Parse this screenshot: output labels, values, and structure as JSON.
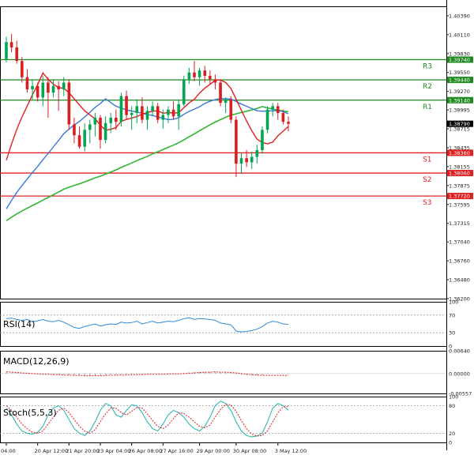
{
  "chart_data": [
    {
      "type": "candlestick",
      "price_axis_labels": [
        "1.40390",
        "1.40110",
        "1.39830",
        "1.39550",
        "1.39270",
        "1.38995",
        "1.38715",
        "1.38435",
        "1.38155",
        "1.37875",
        "1.37595",
        "1.37315",
        "1.37040",
        "1.36760",
        "1.36480",
        "1.36200"
      ],
      "price_range": [
        1.362,
        1.4053
      ],
      "current_price": 1.3879,
      "current_price_label": "1.38790",
      "colors": {
        "bull": "#00a651",
        "bear": "#d81e1e",
        "ma_fast": "#e02020",
        "ma_mid": "#3a78d8",
        "ma_slow": "#32b432",
        "resistance": "#1f8a1f",
        "support": "#e02020",
        "price_badge": "#000000"
      },
      "levels": [
        {
          "name": "R3",
          "price": 1.3974,
          "label": "1.39740",
          "kind": "resistance"
        },
        {
          "name": "R2",
          "price": 1.3944,
          "label": "1.39440",
          "kind": "resistance"
        },
        {
          "name": "R1",
          "price": 1.3914,
          "label": "1.39140",
          "kind": "resistance"
        },
        {
          "name": "S1",
          "price": 1.3836,
          "label": "1.38360",
          "kind": "support"
        },
        {
          "name": "S2",
          "price": 1.3806,
          "label": "1.38060",
          "kind": "support"
        },
        {
          "name": "S3",
          "price": 1.3772,
          "label": "1.37720",
          "kind": "support"
        }
      ],
      "candles": [
        [
          1.3975,
          1.4008,
          1.397,
          1.4
        ],
        [
          1.4,
          1.4012,
          1.3985,
          1.3992
        ],
        [
          1.3992,
          1.4002,
          1.3968,
          1.3972
        ],
        [
          1.3972,
          1.3978,
          1.394,
          1.3948
        ],
        [
          1.3948,
          1.396,
          1.3925,
          1.393
        ],
        [
          1.393,
          1.3945,
          1.3915,
          1.3935
        ],
        [
          1.3935,
          1.394,
          1.3912,
          1.3918
        ],
        [
          1.3918,
          1.395,
          1.3905,
          1.394
        ],
        [
          1.394,
          1.3948,
          1.3888,
          1.3925
        ],
        [
          1.3925,
          1.3945,
          1.3918,
          1.3935
        ],
        [
          1.3935,
          1.3942,
          1.3898,
          1.393
        ],
        [
          1.393,
          1.3948,
          1.392,
          1.394
        ],
        [
          1.394,
          1.3945,
          1.387,
          1.3878
        ],
        [
          1.3878,
          1.3888,
          1.385,
          1.3862
        ],
        [
          1.3862,
          1.3875,
          1.3842,
          1.3845
        ],
        [
          1.3845,
          1.388,
          1.3838,
          1.387
        ],
        [
          1.387,
          1.3885,
          1.385,
          1.3878
        ],
        [
          1.3878,
          1.3895,
          1.386,
          1.3888
        ],
        [
          1.3888,
          1.3892,
          1.3842,
          1.3855
        ],
        [
          1.3855,
          1.389,
          1.385,
          1.388
        ],
        [
          1.388,
          1.3895,
          1.3865,
          1.3888
        ],
        [
          1.3888,
          1.39,
          1.387,
          1.3882
        ],
        [
          1.3882,
          1.3925,
          1.3875,
          1.392
        ],
        [
          1.392,
          1.3928,
          1.3885,
          1.3892
        ],
        [
          1.3892,
          1.3905,
          1.387,
          1.3895
        ],
        [
          1.3895,
          1.3915,
          1.388,
          1.3905
        ],
        [
          1.3905,
          1.3918,
          1.388,
          1.3885
        ],
        [
          1.3885,
          1.3905,
          1.387,
          1.3898
        ],
        [
          1.3898,
          1.3912,
          1.389,
          1.3905
        ],
        [
          1.3905,
          1.391,
          1.388,
          1.3885
        ],
        [
          1.3885,
          1.39,
          1.3872,
          1.3892
        ],
        [
          1.3892,
          1.3905,
          1.388,
          1.39
        ],
        [
          1.39,
          1.3912,
          1.3885,
          1.389
        ],
        [
          1.389,
          1.3915,
          1.387,
          1.3908
        ],
        [
          1.3908,
          1.395,
          1.3905,
          1.3945
        ],
        [
          1.3945,
          1.3962,
          1.3938,
          1.3955
        ],
        [
          1.3955,
          1.3972,
          1.3942,
          1.3948
        ],
        [
          1.3948,
          1.3962,
          1.3935,
          1.3958
        ],
        [
          1.3958,
          1.3965,
          1.394,
          1.395
        ],
        [
          1.395,
          1.3958,
          1.3938,
          1.3945
        ],
        [
          1.3945,
          1.3952,
          1.393,
          1.394
        ],
        [
          1.394,
          1.3945,
          1.3905,
          1.391
        ],
        [
          1.391,
          1.3918,
          1.3895,
          1.3915
        ],
        [
          1.3915,
          1.392,
          1.388,
          1.3885
        ],
        [
          1.3885,
          1.389,
          1.38,
          1.382
        ],
        [
          1.382,
          1.3835,
          1.3805,
          1.3828
        ],
        [
          1.3828,
          1.384,
          1.3815,
          1.3822
        ],
        [
          1.3822,
          1.3838,
          1.3812,
          1.383
        ],
        [
          1.383,
          1.3848,
          1.382,
          1.384
        ],
        [
          1.384,
          1.3875,
          1.3835,
          1.387
        ],
        [
          1.387,
          1.3905,
          1.3865,
          1.39
        ],
        [
          1.39,
          1.391,
          1.389,
          1.3905
        ],
        [
          1.3905,
          1.391,
          1.3885,
          1.3895
        ],
        [
          1.3895,
          1.39,
          1.3878,
          1.3882
        ],
        [
          1.3882,
          1.389,
          1.3868,
          1.3879
        ]
      ],
      "time_labels": [
        "04:00",
        "20 Apr 12:00",
        "21 Apr 20:00",
        "23 Apr 04:00",
        "26 Apr 08:00",
        "27 Apr 16:00",
        "29 Apr 00:00",
        "30 Apr 08:00",
        "3 May 12:00"
      ]
    },
    {
      "type": "line",
      "name": "RSI(14)",
      "axis_labels": [
        "100",
        "70",
        "30",
        "0"
      ],
      "ylim": [
        0,
        100
      ],
      "levels": [
        70,
        30
      ],
      "values": [
        62,
        63,
        60,
        58,
        60,
        55,
        57,
        60,
        56,
        55,
        58,
        54,
        48,
        42,
        40,
        44,
        47,
        50,
        45,
        48,
        50,
        49,
        54,
        52,
        53,
        56,
        50,
        53,
        56,
        52,
        54,
        56,
        55,
        58,
        62,
        64,
        60,
        62,
        61,
        60,
        58,
        52,
        50,
        48,
        34,
        32,
        33,
        35,
        38,
        44,
        52,
        56,
        54,
        50,
        49
      ]
    },
    {
      "type": "histogram+line",
      "name": "MACD(12,26,9)",
      "axis_labels": [
        "0.00640",
        "0.00000",
        "-0.00557"
      ],
      "ylim": [
        -0.00557,
        0.0064
      ],
      "histogram": [
        0.0004,
        0.0003,
        0.0002,
        0.0001,
        0.0,
        -0.0001,
        -0.0002,
        -0.0002,
        -0.0003,
        -0.0003,
        -0.0003,
        -0.0003,
        -0.0004,
        -0.0005,
        -0.0006,
        -0.0006,
        -0.0006,
        -0.0005,
        -0.0005,
        -0.0005,
        -0.0004,
        -0.0004,
        -0.0003,
        -0.0003,
        -0.0003,
        -0.0002,
        -0.0002,
        -0.0002,
        -0.0001,
        -0.0001,
        -0.0001,
        -0.0001,
        -0.0001,
        0.0,
        0.0002,
        0.0003,
        0.0004,
        0.0005,
        0.0005,
        0.0005,
        0.0005,
        0.0004,
        0.0003,
        0.0002,
        -0.0001,
        -0.0003,
        -0.0004,
        -0.0005,
        -0.0005,
        -0.0004,
        -0.0002,
        -0.0001,
        -0.0001,
        -0.0001,
        -0.0002
      ],
      "signal": [
        0.0005,
        0.0004,
        0.0003,
        0.0002,
        0.0001,
        0.0,
        -0.0001,
        -0.0002,
        -0.0002,
        -0.0003,
        -0.0003,
        -0.0004,
        -0.0004,
        -0.0005,
        -0.0005,
        -0.0006,
        -0.0006,
        -0.0006,
        -0.0006,
        -0.0005,
        -0.0005,
        -0.0004,
        -0.0004,
        -0.0004,
        -0.0003,
        -0.0003,
        -0.0003,
        -0.0002,
        -0.0002,
        -0.0002,
        -0.0002,
        -0.0001,
        -0.0001,
        -0.0001,
        0.0,
        0.0001,
        0.0002,
        0.0003,
        0.0004,
        0.0004,
        0.0005,
        0.0004,
        0.0004,
        0.0003,
        0.0002,
        0.0,
        -0.0002,
        -0.0003,
        -0.0004,
        -0.0005,
        -0.0005,
        -0.0005,
        -0.0005,
        -0.0005,
        -0.0005
      ]
    },
    {
      "type": "line",
      "name": "Stoch(5,5,3)",
      "axis_labels": [
        "100",
        "80",
        "20",
        "0"
      ],
      "ylim": [
        0,
        100
      ],
      "levels": [
        80,
        20
      ],
      "k": [
        75,
        60,
        40,
        25,
        20,
        18,
        22,
        35,
        60,
        75,
        80,
        70,
        50,
        30,
        20,
        15,
        25,
        45,
        70,
        85,
        80,
        60,
        55,
        70,
        82,
        80,
        65,
        45,
        30,
        25,
        40,
        60,
        70,
        65,
        55,
        40,
        30,
        25,
        35,
        55,
        80,
        90,
        85,
        70,
        45,
        25,
        15,
        12,
        14,
        20,
        45,
        75,
        85,
        80,
        70
      ],
      "d": [
        80,
        70,
        55,
        40,
        30,
        22,
        20,
        25,
        40,
        55,
        70,
        75,
        65,
        50,
        35,
        25,
        20,
        28,
        45,
        62,
        75,
        75,
        65,
        60,
        68,
        76,
        75,
        62,
        48,
        35,
        30,
        38,
        52,
        65,
        63,
        55,
        45,
        35,
        32,
        38,
        55,
        72,
        83,
        82,
        68,
        48,
        30,
        18,
        14,
        15,
        25,
        45,
        65,
        78,
        78
      ]
    }
  ]
}
